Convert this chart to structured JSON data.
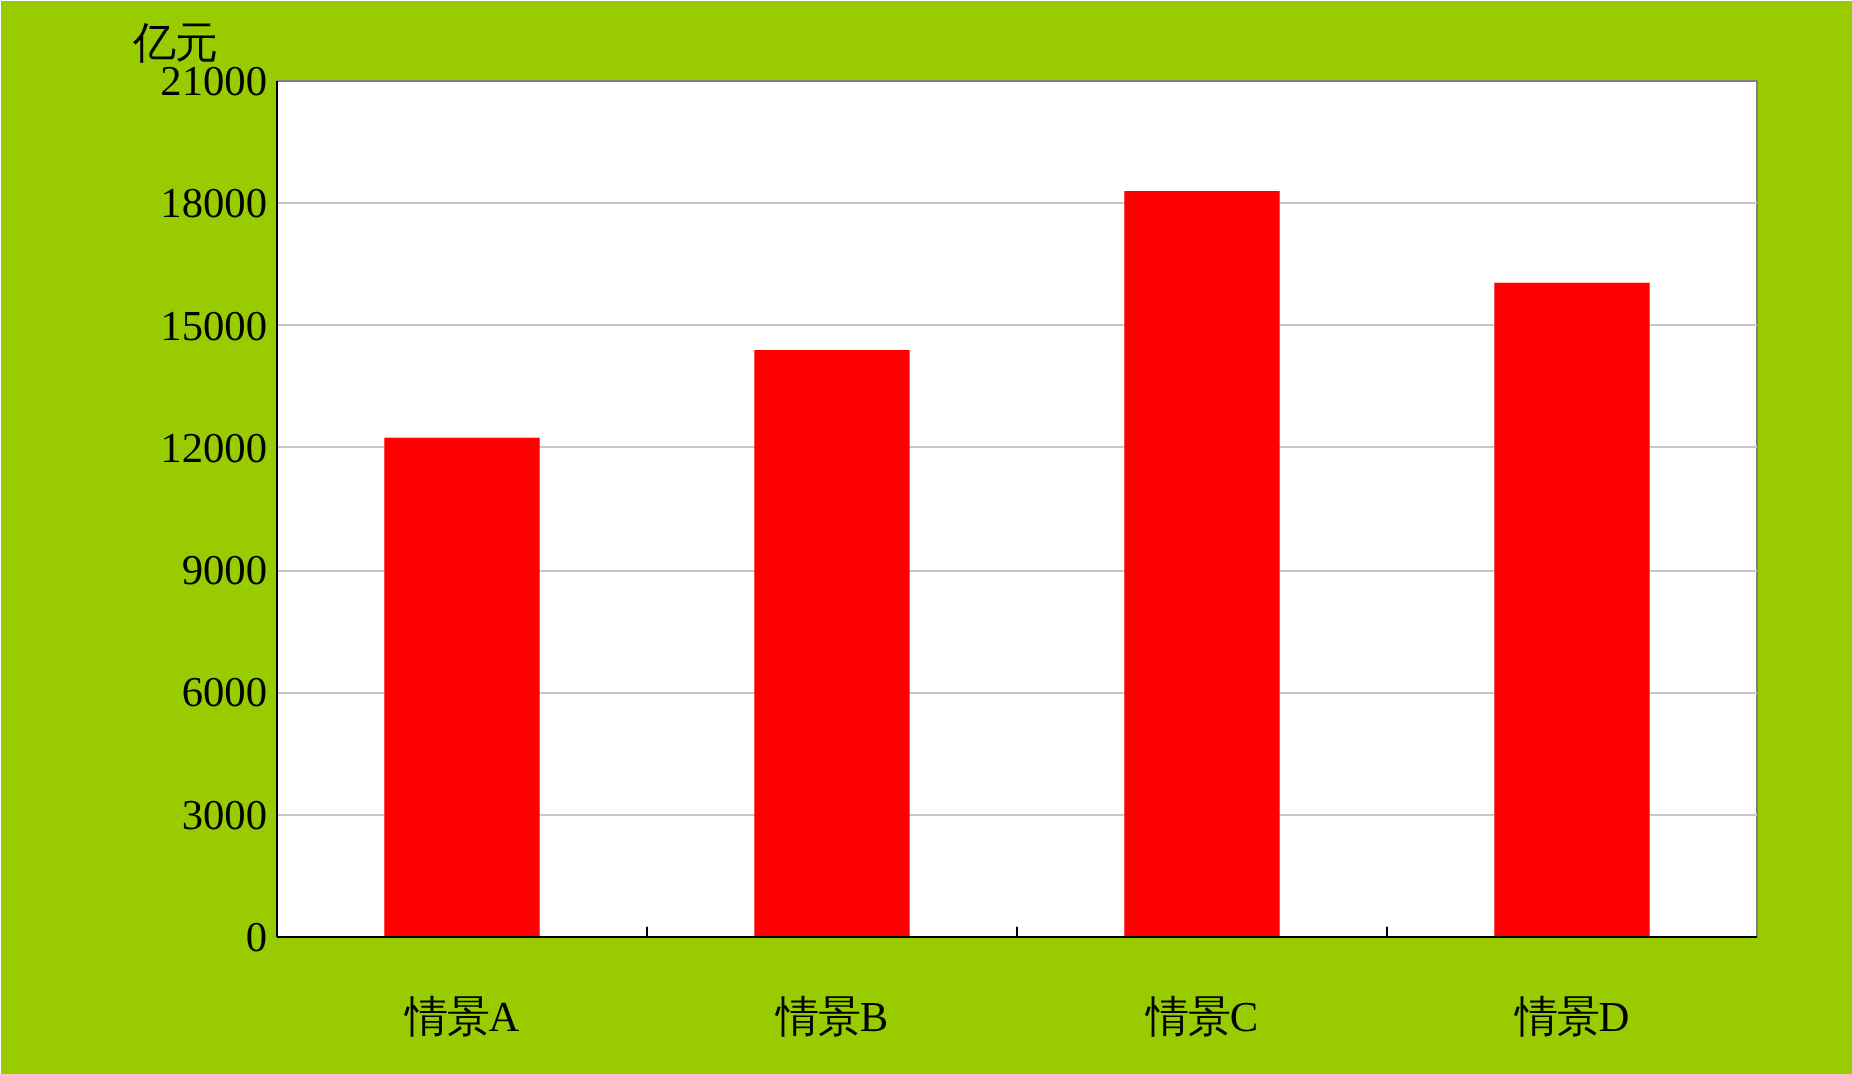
{
  "chart_data": {
    "type": "bar",
    "ylabel": "亿元",
    "categories": [
      "情景A",
      "情景B",
      "情景C",
      "情景D"
    ],
    "values": [
      12250,
      14400,
      18300,
      16050
    ],
    "color": "#ff0000",
    "ylim": [
      0,
      21000
    ],
    "yticks": [
      0,
      3000,
      6000,
      9000,
      12000,
      15000,
      18000,
      21000
    ],
    "grid": "y"
  }
}
